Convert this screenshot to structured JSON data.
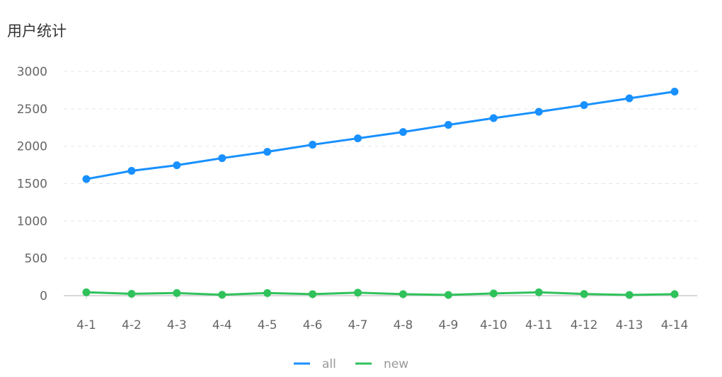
{
  "title": "用户统计",
  "chart_data": {
    "type": "line",
    "title": "用户统计",
    "categories": [
      "4-1",
      "4-2",
      "4-3",
      "4-4",
      "4-5",
      "4-6",
      "4-7",
      "4-8",
      "4-9",
      "4-10",
      "4-11",
      "4-12",
      "4-13",
      "4-14"
    ],
    "series": [
      {
        "name": "all",
        "color": "#1890ff",
        "values": [
          1560,
          1670,
          1745,
          1840,
          1925,
          2020,
          2105,
          2190,
          2285,
          2375,
          2460,
          2550,
          2640,
          2730
        ]
      },
      {
        "name": "new",
        "color": "#2fc25b",
        "values": [
          45,
          25,
          35,
          12,
          35,
          20,
          40,
          20,
          10,
          30,
          45,
          22,
          10,
          20
        ]
      }
    ],
    "yticks": [
      0,
      500,
      1000,
      1500,
      2000,
      2500,
      3000
    ],
    "ylim": [
      0,
      3000
    ],
    "grid": true,
    "legend_position": "bottom"
  }
}
